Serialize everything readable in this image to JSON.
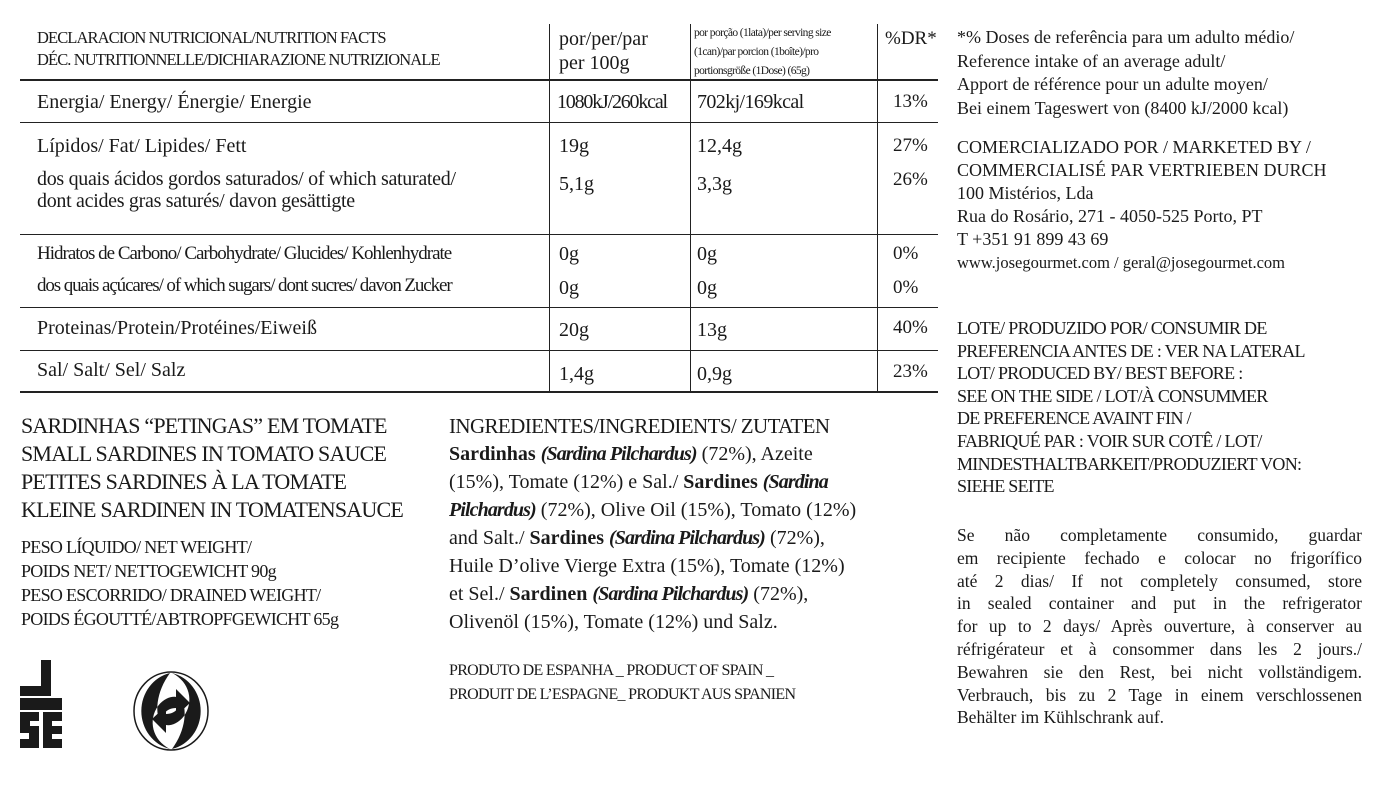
{
  "table": {
    "header": {
      "title_lines": [
        "DECLARACION NUTRICIONAL/NUTRITION FACTS",
        "DÉC. NUTRITIONNELLE/DICHIARAZIONE NUTRIZIONALE"
      ],
      "per100_lines": [
        "por/per/par",
        "per 100g"
      ],
      "serving_lines": [
        "por porção (1lata)/per serving size",
        "(1can)/par porcion (1boîte)/pro",
        "portionsgröße (1Dose) (65g)"
      ],
      "dr": "%DR*"
    },
    "rows": [
      {
        "label": "Energia/ Energy/ Énergie/ Energie",
        "per100": "1080kJ/260kcal",
        "serving": "702kj/169kcal",
        "dr": "13%"
      },
      {
        "label": "Lípidos/ Fat/ Lipides/ Fett",
        "per100": "19g",
        "serving": "12,4g",
        "dr": "27%"
      },
      {
        "label": "dos quais ácidos gordos saturados/ of which saturated/",
        "label2": "dont acides gras saturés/ davon gesättigte",
        "per100": "5,1g",
        "serving": "3,3g",
        "dr": "26%"
      },
      {
        "label": "Hidratos de Carbono/ Carbohydrate/ Glucides/ Kohlenhydrate",
        "per100": "0g",
        "serving": "0g",
        "dr": "0%"
      },
      {
        "label": "dos quais açúcares/ of which sugars/ dont sucres/ davon Zucker",
        "per100": "0g",
        "serving": "0g",
        "dr": "0%"
      },
      {
        "label": "Proteinas/Protein/Protéines/Eiweiß",
        "per100": "20g",
        "serving": "13g",
        "dr": "40%"
      },
      {
        "label": "Sal/ Salt/ Sel/ Salz",
        "per100": "1,4g",
        "serving": "0,9g",
        "dr": "23%"
      }
    ]
  },
  "product_names": [
    "SARDINHAS “PETINGAS” EM TOMATE",
    "SMALL SARDINES IN TOMATO SAUCE",
    "PETITES SARDINES À LA TOMATE",
    "KLEINE SARDINEN IN TOMATENSAUCE"
  ],
  "weights": [
    "PESO LÍQUIDO/ NET WEIGHT/",
    "POIDS NET/ NETTOGEWICHT 90g",
    "PESO ESCORRIDO/ DRAINED WEIGHT/",
    "POIDS ÉGOUTTÉ/ABTROPFGEWICHT 65g"
  ],
  "ingredients": {
    "title": "INGREDIENTES/INGREDIENTS/ ZUTATEN",
    "p": {
      "a1": "Sardinhas ",
      "a2": "(Sardina Pilchardus)",
      "a3": " (72%), Azeite",
      "b1": "(15%), Tomate (12%) e Sal./ ",
      "b2": "Sardines ",
      "b3": "(Sardina",
      "c1": "Pilchardus)",
      "c2": " (72%), Olive Oil (15%), Tomato (12%)",
      "d1": "and Salt./ ",
      "d2": "Sardines ",
      "d3": "(Sardina Pilchardus)",
      "d4": " (72%),",
      "e1": "Huile D’olive Vierge Extra (15%), Tomate (12%)",
      "f1": "et Sel./ ",
      "f2": "Sardinen ",
      "f3": "(Sardina Pilchardus)",
      "f4": " (72%),",
      "g1": "Olivenöl (15%), Tomate (12%) und Salz."
    }
  },
  "origin": [
    "PRODUTO DE ESPANHA _ PRODUCT OF SPAIN _",
    "PRODUIT DE L’ESPAGNE_ PRODUKT AUS SPANIEN"
  ],
  "reference_note": [
    "*% Doses de referência para um adulto médio/",
    "Reference intake of an average adult/",
    "Apport de référence pour un adulte moyen/",
    "Bei einem Tageswert von (8400 kJ/2000 kcal)"
  ],
  "marketed": [
    "COMERCIALIZADO POR  / MARKETED BY /",
    "COMMERCIALISÉ PAR VERTRIEBEN DURCH",
    "100 Mistérios, Lda",
    "Rua do Rosário, 271 - 4050-525 Porto, PT",
    "T +351 91 899 43 69",
    "www.josegourmet.com / geral@josegourmet.com"
  ],
  "lot": [
    "LOTE/ PRODUZIDO POR/ CONSUMIR DE",
    "PREFERENCIA ANTES DE : VER NA LATERAL",
    "LOT/ PRODUCED BY/ BEST BEFORE :",
    "SEE ON THE SIDE /  LOT/À CONSUMMER",
    "DE PREFERENCE AVAINT FIN /",
    "FABRIQUÉ PAR : VOIR SUR COTÊ / LOT/",
    "MINDESTHALTBARKEIT/PRODUZIERT VON:",
    "SIEHE SEITE"
  ],
  "storage": [
    "Se não completamente consumido, guardar",
    "em recipiente fechado e colocar no frigorífico",
    "até 2 dias/ If not completely consumed, store",
    "in sealed container and put in the refrigerator",
    "for up to 2 days/ Après ouverture, à conserver au",
    "réfrigérateur et à consommer dans les 2 jours./",
    "Bewahren sie den Rest, bei nicht vollständigem.",
    "Verbrauch, bis zu 2 Tage in einem verschlossenen",
    "Behälter im Kühlschrank auf."
  ],
  "logos": {
    "brand": "JOSE",
    "recycle": "green-dot-icon"
  }
}
